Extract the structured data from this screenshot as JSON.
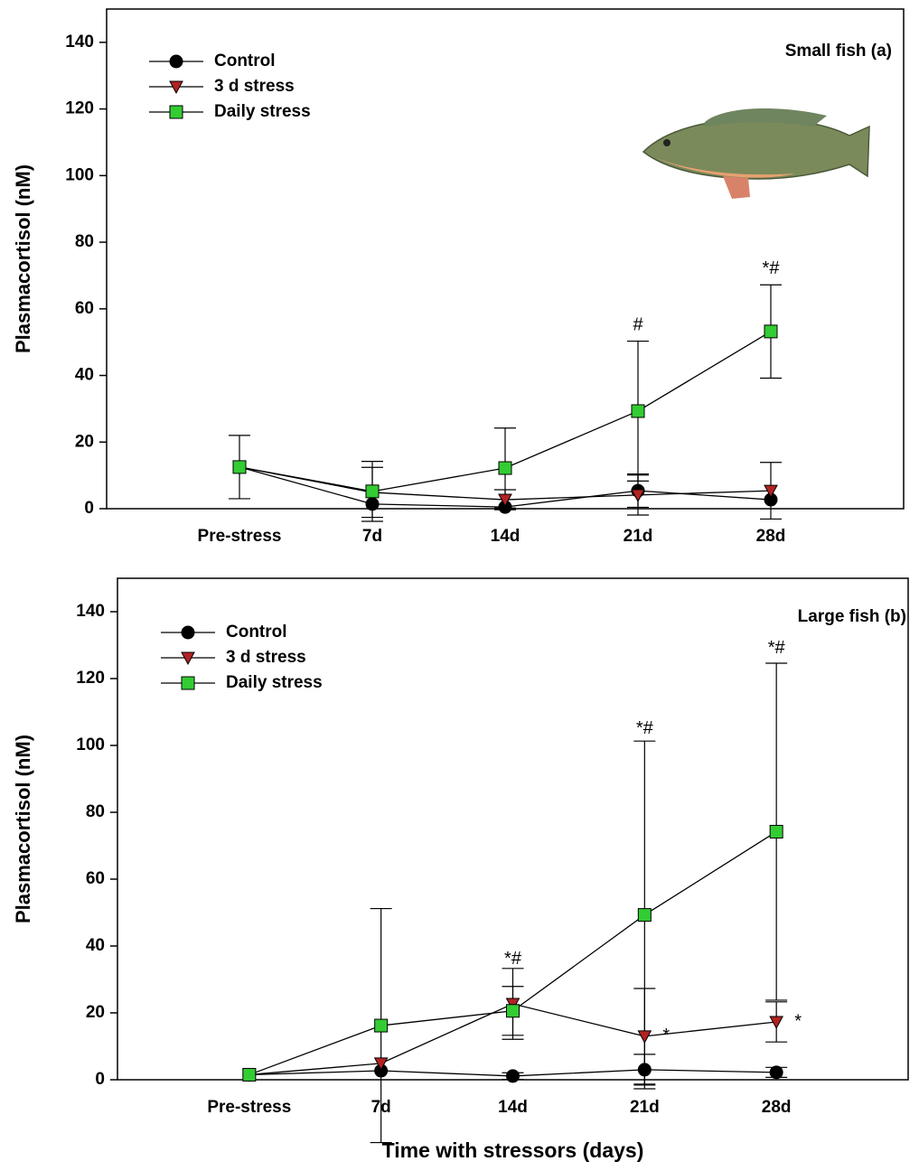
{
  "chart_data": [
    {
      "type": "line",
      "panel_label": "Small fish (a)",
      "y_label": "Plasmacortisol (nM)",
      "categories": [
        "Pre-stress",
        "7d",
        "14d",
        "21d",
        "28d"
      ],
      "ylim": [
        0,
        150
      ],
      "yticks": [
        0,
        20,
        40,
        60,
        80,
        100,
        120,
        140
      ],
      "series": [
        {
          "name": "Control",
          "color": "#000000",
          "marker": "circle",
          "values": [
            12.5,
            1.4,
            0.5,
            5.4,
            2.7
          ],
          "errors": [
            null,
            null,
            null,
            5,
            null
          ]
        },
        {
          "name": "3 d stress",
          "color": "#b22222",
          "marker": "triangle-down",
          "values": [
            12.5,
            4.9,
            2.7,
            4.1,
            5.4
          ],
          "errors": [
            null,
            7.5,
            3,
            6,
            8.5
          ]
        },
        {
          "name": "Daily stress",
          "color": "#33cc33",
          "marker": "square",
          "values": [
            12.5,
            5.2,
            12.2,
            29.3,
            53.2
          ],
          "errors": [
            9.5,
            9,
            12,
            21,
            14
          ]
        }
      ],
      "annotations": [
        "#",
        "*#"
      ]
    },
    {
      "type": "line",
      "panel_label": "Large fish (b)",
      "y_label": "Plasmacortisol (nM)",
      "x_label": "Time with stressors (days)",
      "categories": [
        "Pre-stress",
        "7d",
        "14d",
        "21d",
        "28d"
      ],
      "ylim": [
        0,
        150
      ],
      "yticks": [
        0,
        20,
        40,
        60,
        80,
        100,
        120,
        140
      ],
      "series": [
        {
          "name": "Control",
          "color": "#000000",
          "marker": "circle",
          "values": [
            1.5,
            2.7,
            1.1,
            3,
            2.2
          ],
          "errors": [
            null,
            null,
            1,
            4.6,
            1.5
          ]
        },
        {
          "name": "3 d stress",
          "color": "#b22222",
          "marker": "triangle-down",
          "values": [
            1.5,
            4.9,
            22.7,
            13,
            17.3
          ],
          "errors": [
            null,
            null,
            10.6,
            14.3,
            6
          ]
        },
        {
          "name": "Daily stress",
          "color": "#33cc33",
          "marker": "square",
          "values": [
            1.5,
            16.2,
            20.6,
            49.3,
            74.2
          ],
          "errors": [
            null,
            35,
            7.3,
            52,
            50.4
          ]
        }
      ],
      "annotations": [
        "*#",
        "*#",
        "*#",
        "*",
        "*"
      ]
    }
  ]
}
